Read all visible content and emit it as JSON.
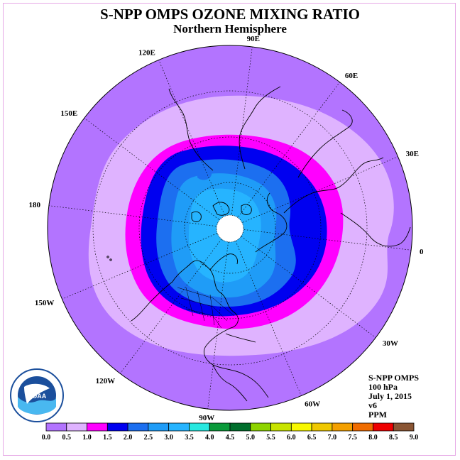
{
  "header": {
    "title": "S-NPP OMPS OZONE MIXING RATIO",
    "subtitle": "Northern Hemisphere"
  },
  "map": {
    "projection": "polar stereographic",
    "longitude_labels": [
      {
        "text": "90E",
        "lon": 90
      },
      {
        "text": "60E",
        "lon": 60
      },
      {
        "text": "30E",
        "lon": 30
      },
      {
        "text": "0",
        "lon": 0
      },
      {
        "text": "30W",
        "lon": -30
      },
      {
        "text": "60W",
        "lon": -60
      },
      {
        "text": "90W",
        "lon": -90
      },
      {
        "text": "120W",
        "lon": -120
      },
      {
        "text": "150W",
        "lon": -150
      },
      {
        "text": "180",
        "lon": 180
      },
      {
        "text": "150E",
        "lon": 150
      },
      {
        "text": "120E",
        "lon": 120
      }
    ],
    "colors": {
      "ring_0_0.5": "#b374ff",
      "ring_0.5_1.0": "#dfb3ff",
      "ring_1.0_1.5": "#ff00ff",
      "ring_1.5_2.0": "#0000f0",
      "ring_2.0_2.5": "#1c6ff0",
      "ring_2.5_3.0": "#1f9cf7",
      "ring_3.0_3.5": "#26b4ff",
      "pole_fill": "#ffffff"
    }
  },
  "info": {
    "instrument": "S-NPP OMPS",
    "level": "100 hPa",
    "date": "July 1, 2015",
    "version": "v6",
    "units": "PPM"
  },
  "logo": {
    "text": "NOAA",
    "ring_text": "NATIONAL OCEANIC AND ATMOSPHERIC ADMINISTRATION"
  },
  "colorbar": {
    "ticks": [
      "0.0",
      "0.5",
      "1.0",
      "1.5",
      "2.0",
      "2.5",
      "3.0",
      "3.5",
      "4.0",
      "4.5",
      "5.0",
      "5.5",
      "6.0",
      "6.5",
      "7.0",
      "7.5",
      "8.0",
      "8.5",
      "9.0"
    ],
    "colors": [
      "#b374ff",
      "#dfb3ff",
      "#ff00ff",
      "#0000f0",
      "#1c6ff0",
      "#1f9cf7",
      "#26b4ff",
      "#27e8e0",
      "#0a9a3a",
      "#006e2c",
      "#8ed400",
      "#c8e400",
      "#f8f800",
      "#f0c800",
      "#f4a000",
      "#f06c00",
      "#ee0000",
      "#8a5534"
    ]
  }
}
